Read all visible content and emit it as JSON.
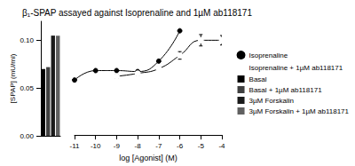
{
  "chart_data": {
    "type": "scatter",
    "title": "β₁-SPAP assayed against Isoprenaline and 1µM ab118171",
    "x_label": "log [Agonist] (M)",
    "y_label": "[SPAP] (mU/ml)",
    "xlim": [
      -11,
      -4
    ],
    "xticks": [
      -11,
      -10,
      -9,
      -8,
      -7,
      -6,
      -5,
      -4
    ],
    "ylim": [
      0,
      0.12
    ],
    "yticks": [
      {
        "value": 0,
        "label": "0.00"
      },
      {
        "value": 0.05,
        "label": "0.05"
      },
      {
        "value": 0.1,
        "label": "0.10"
      }
    ],
    "legend": "right",
    "series": [
      {
        "name": "Isoprenaline",
        "type": "line",
        "marker": "filled circle",
        "color": "#000000",
        "x": [
          -11,
          -10,
          -9,
          -8,
          -7,
          -6
        ],
        "values": [
          0.058,
          0.068,
          0.068,
          0.067,
          0.078,
          0.11
        ]
      },
      {
        "name": "Isoprenaline + 1µM ab118171",
        "type": "line",
        "marker": "open circle",
        "color": "#000000",
        "x": [
          -9,
          -8,
          -7,
          -6,
          -5,
          -4
        ],
        "values": [
          0.062,
          0.065,
          0.07,
          0.084,
          0.1,
          0.1
        ],
        "errors": [
          0.002,
          0.002,
          0.002,
          0.004,
          0.006,
          0.005
        ]
      },
      {
        "name": "Basal",
        "type": "bar",
        "color": "#000000",
        "values": [
          0.07
        ]
      },
      {
        "name": "Basal + 1µM ab118171",
        "type": "bar",
        "color": "#404040",
        "values": [
          0.072
        ]
      },
      {
        "name": "3µM Forskalin",
        "type": "bar",
        "color": "#1a1a1a",
        "values": [
          0.105
        ]
      },
      {
        "name": "3µM Forskalin + 1µM ab118171",
        "type": "bar",
        "color": "#606060",
        "values": [
          0.105
        ]
      }
    ]
  }
}
